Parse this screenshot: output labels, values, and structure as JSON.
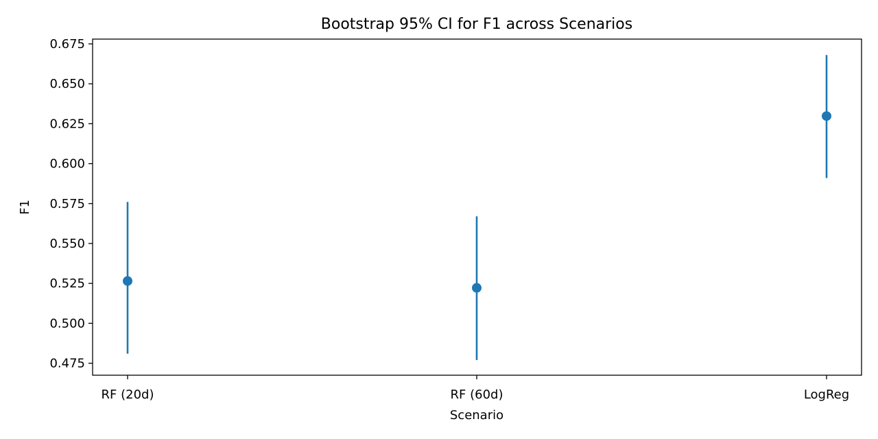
{
  "chart_data": {
    "type": "scatter",
    "title": "Bootstrap 95% CI for F1 across Scenarios",
    "xlabel": "Scenario",
    "ylabel": "F1",
    "categories": [
      "RF (20d)",
      "RF (60d)",
      "LogReg"
    ],
    "series": [
      {
        "values": [
          0.5265,
          0.5222,
          0.6298
        ],
        "ci_low": [
          0.481,
          0.477,
          0.591
        ],
        "ci_high": [
          0.576,
          0.567,
          0.668
        ],
        "color": "#1f77b4"
      }
    ],
    "ylim": [
      0.4675,
      0.678
    ],
    "yticks": [
      "0.475",
      "0.500",
      "0.525",
      "0.550",
      "0.575",
      "0.600",
      "0.625",
      "0.650",
      "0.675"
    ],
    "grid": false,
    "legend": "none"
  }
}
